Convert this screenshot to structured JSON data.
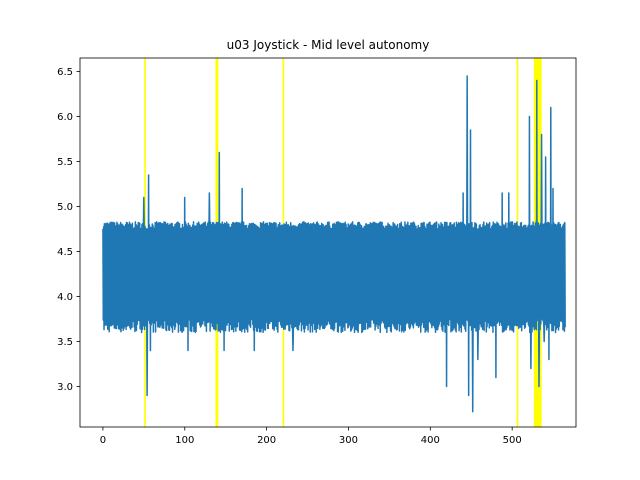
{
  "chart_data": {
    "type": "line",
    "title": "u03 Joystick - Mid level autonomy",
    "xlabel": "",
    "ylabel": "",
    "xlim": [
      -28,
      578
    ],
    "ylim": [
      2.55,
      6.65
    ],
    "x_ticks": [
      0,
      100,
      200,
      300,
      400,
      500
    ],
    "y_ticks": [
      3.0,
      3.5,
      4.0,
      4.5,
      5.0,
      5.5,
      6.0,
      6.5
    ],
    "x_tick_labels": [
      "0",
      "100",
      "200",
      "300",
      "400",
      "500"
    ],
    "y_tick_labels": [
      "3.0",
      "3.5",
      "4.0",
      "4.5",
      "5.0",
      "5.5",
      "6.0",
      "6.5"
    ],
    "grid": false,
    "series_color": "#1f77b4",
    "highlight_color": "#ffff00",
    "highlight_bands": [
      [
        50.5,
        52.5
      ],
      [
        137.5,
        141.0
      ],
      [
        219.5,
        221.5
      ],
      [
        505.5,
        507.5
      ],
      [
        526.5,
        536.0
      ]
    ],
    "signal_x_range": [
      0,
      565
    ],
    "signal_band": {
      "low": [
        3.6,
        3.75
      ],
      "high": [
        4.75,
        4.83
      ]
    },
    "spikes": [
      {
        "x": 50,
        "y": 5.1
      },
      {
        "x": 54,
        "y": 2.9
      },
      {
        "x": 56,
        "y": 5.35
      },
      {
        "x": 58,
        "y": 3.4
      },
      {
        "x": 100,
        "y": 5.1
      },
      {
        "x": 104,
        "y": 3.4
      },
      {
        "x": 130,
        "y": 5.15
      },
      {
        "x": 142,
        "y": 5.6
      },
      {
        "x": 148,
        "y": 3.4
      },
      {
        "x": 170,
        "y": 5.2
      },
      {
        "x": 185,
        "y": 3.4
      },
      {
        "x": 232,
        "y": 3.4
      },
      {
        "x": 420,
        "y": 3.0
      },
      {
        "x": 440,
        "y": 5.15
      },
      {
        "x": 445,
        "y": 6.45
      },
      {
        "x": 447,
        "y": 2.9
      },
      {
        "x": 449,
        "y": 5.85
      },
      {
        "x": 452,
        "y": 2.72
      },
      {
        "x": 458,
        "y": 3.3
      },
      {
        "x": 480,
        "y": 3.1
      },
      {
        "x": 488,
        "y": 5.15
      },
      {
        "x": 496,
        "y": 5.15
      },
      {
        "x": 521,
        "y": 6.0
      },
      {
        "x": 523,
        "y": 3.2
      },
      {
        "x": 530,
        "y": 6.4
      },
      {
        "x": 533,
        "y": 3.0
      },
      {
        "x": 536,
        "y": 5.8
      },
      {
        "x": 539,
        "y": 3.5
      },
      {
        "x": 541,
        "y": 5.55
      },
      {
        "x": 545,
        "y": 3.3
      },
      {
        "x": 547,
        "y": 6.1
      },
      {
        "x": 550,
        "y": 5.2
      },
      {
        "x": 553,
        "y": 3.6
      }
    ]
  }
}
